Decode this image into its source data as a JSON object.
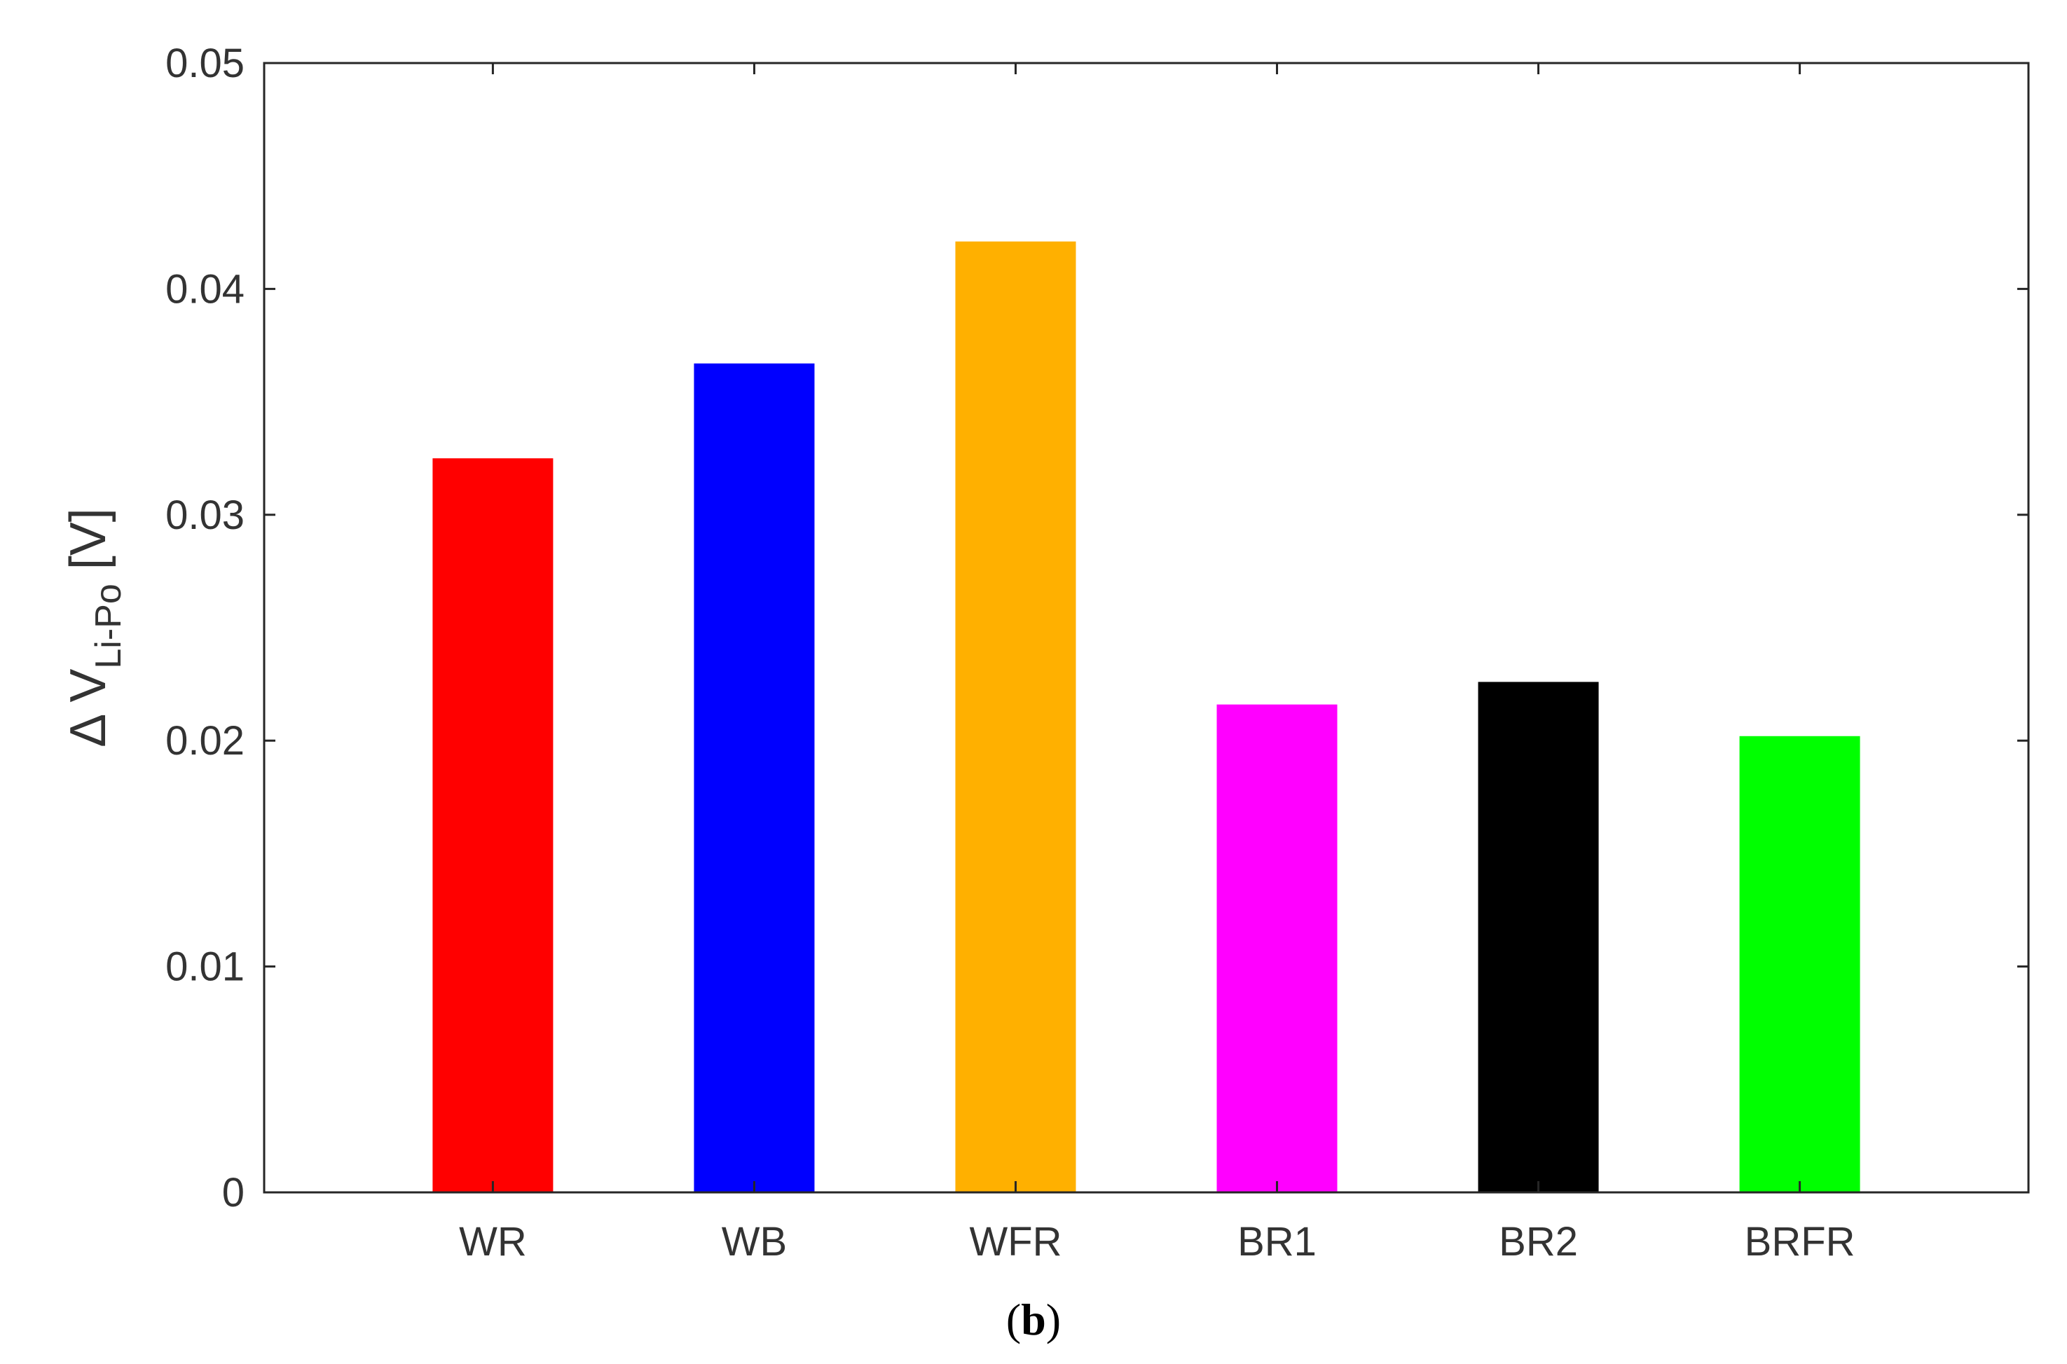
{
  "chart_data": {
    "type": "bar",
    "categories": [
      "WR",
      "WB",
      "WFR",
      "BR1",
      "BR2",
      "BRFR"
    ],
    "values": [
      0.0325,
      0.0367,
      0.0421,
      0.0216,
      0.0226,
      0.0202
    ],
    "colors": [
      "#ff0000",
      "#0000ff",
      "#ffb000",
      "#ff00ff",
      "#000000",
      "#00ff00"
    ],
    "ylim": [
      0,
      0.05
    ],
    "yticks": [
      "0",
      "0.01",
      "0.02",
      "0.03",
      "0.04",
      "0.05"
    ],
    "ylabel": {
      "prefix": "Δ V",
      "subscript": "Li-Po",
      "suffix": " [V]"
    },
    "xlabel": "",
    "title": "",
    "grid": false,
    "box": true
  },
  "panel_label": {
    "open": "(",
    "letter": "b",
    "close": ")"
  }
}
